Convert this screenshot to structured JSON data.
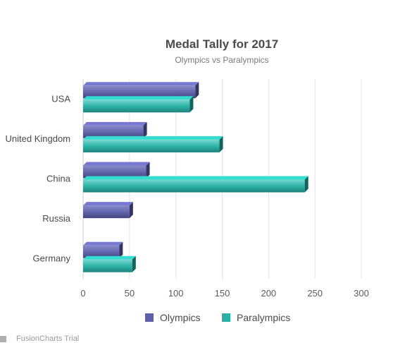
{
  "chart_data": {
    "type": "bar",
    "orientation": "horizontal",
    "title": "Medal Tally for 2017",
    "subtitle": "Olympics vs Paralympics",
    "categories": [
      "USA",
      "United Kingdom",
      "China",
      "Russia",
      "Germany"
    ],
    "series": [
      {
        "name": "Olympics",
        "color": "#5f60a8",
        "values": [
          121,
          65,
          68,
          50,
          39
        ]
      },
      {
        "name": "Paralympics",
        "color": "#2ab0a6",
        "values": [
          115,
          147,
          239,
          0,
          53
        ]
      }
    ],
    "xlim": [
      0,
      300
    ],
    "x_ticks": [
      "0",
      "50",
      "100",
      "150",
      "200",
      "250",
      "300"
    ],
    "grid": true,
    "legend": "bottom-center"
  },
  "credit": {
    "label": "FusionCharts Trial"
  }
}
